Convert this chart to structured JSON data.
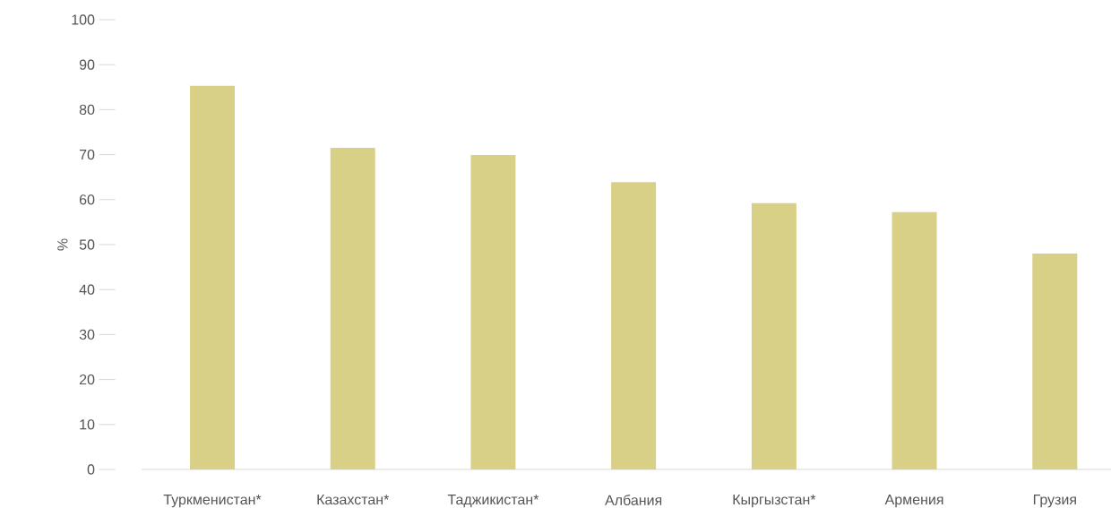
{
  "chart_data": {
    "type": "bar",
    "ylabel": "%",
    "categories": [
      "Туркменистан*",
      "Казахстан*",
      "Таджикистан*",
      "Албания",
      "Кыргызстан*",
      "Армения",
      "Грузия"
    ],
    "values": [
      85.3,
      71.5,
      69.9,
      63.9,
      59.2,
      57.2,
      48.0
    ],
    "color": "#d9d087",
    "ylim": [
      0,
      100
    ],
    "yticks": [
      0,
      10,
      20,
      30,
      40,
      50,
      60,
      70,
      80,
      90,
      100
    ]
  }
}
